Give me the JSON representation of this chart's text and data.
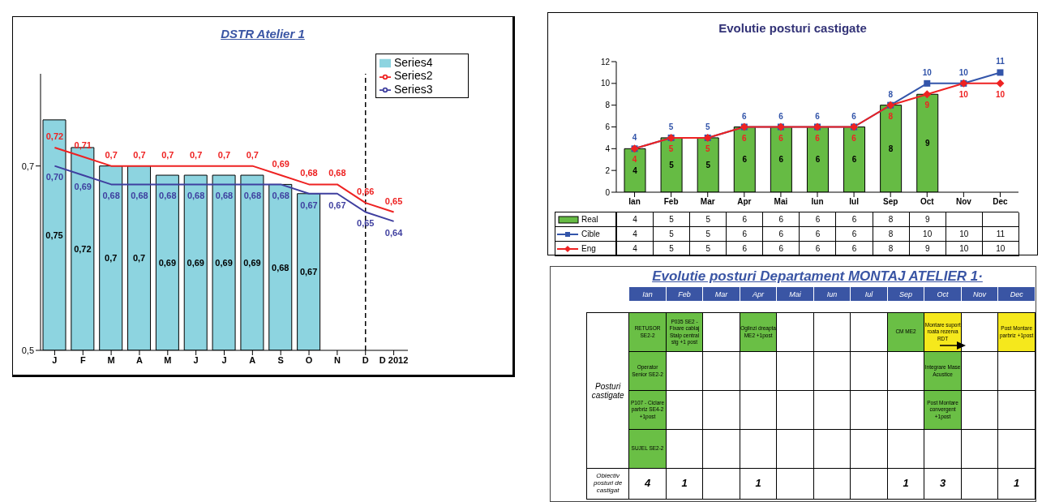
{
  "chart_data": [
    {
      "type": "bar",
      "title": "DSTR Atelier 1",
      "categories": [
        "J",
        "F",
        "M",
        "A",
        "M",
        "J",
        "J",
        "A",
        "S",
        "O",
        "N",
        "D",
        "D 2012"
      ],
      "series": [
        {
          "name": "Series4",
          "type": "bar",
          "color": "#8dd4e0",
          "values": [
            0.75,
            0.72,
            0.7,
            0.7,
            0.69,
            0.69,
            0.69,
            0.69,
            0.68,
            0.67,
            null,
            null,
            null
          ],
          "value_labels": [
            "0,75",
            "0,72",
            "0,7",
            "0,7",
            "0,69",
            "0,69",
            "0,69",
            "0,69",
            "0,68",
            "0,67",
            null,
            null,
            null
          ]
        },
        {
          "name": "Series2",
          "type": "line",
          "color": "#ee2222",
          "values": [
            0.72,
            0.71,
            0.7,
            0.7,
            0.7,
            0.7,
            0.7,
            0.7,
            0.69,
            0.68,
            0.68,
            0.66,
            0.65
          ],
          "value_labels": [
            "0,72",
            "0,71",
            "0,7",
            "0,7",
            "0,7",
            "0,7",
            "0,7",
            "0,7",
            "0,69",
            "0,68",
            "0,68",
            "0,66",
            "0,65"
          ]
        },
        {
          "name": "Series3",
          "type": "line",
          "color": "#3f3f9f",
          "values": [
            0.7,
            0.69,
            0.68,
            0.68,
            0.68,
            0.68,
            0.68,
            0.68,
            0.68,
            0.67,
            0.67,
            0.65,
            0.64
          ],
          "value_labels": [
            "0,70",
            "0,69",
            "0,68",
            "0,68",
            "0,68",
            "0,68",
            "0,68",
            "0,68",
            "0,68",
            "0,67",
            "0,67",
            "0,65",
            "0,64"
          ]
        }
      ],
      "ylim": [
        0.5,
        0.8
      ],
      "yticks": [
        {
          "value": 0.5,
          "label": "0,5"
        },
        {
          "value": 0.7,
          "label": "0,7"
        }
      ],
      "ref_lines": [
        {
          "axis": "x",
          "value": "D",
          "color": "#000000",
          "line_style": "dashed"
        }
      ],
      "legend": "top right",
      "grid": false,
      "marker": "none"
    },
    {
      "type": "bar",
      "title": "Evolutie posturi castigate",
      "categories": [
        "Ian",
        "Feb",
        "Mar",
        "Apr",
        "Mai",
        "Iun",
        "Iul",
        "Sep",
        "Oct",
        "Nov",
        "Dec"
      ],
      "series": [
        {
          "name": "Real",
          "type": "bar",
          "color": "#66bb44",
          "values": [
            4,
            5,
            5,
            6,
            6,
            6,
            6,
            8,
            9,
            null,
            null
          ],
          "value_labels": [
            "4",
            "5",
            "5",
            "6",
            "6",
            "6",
            "6",
            "8",
            "9",
            null,
            null
          ]
        },
        {
          "name": "Cible",
          "type": "line",
          "color": "#3355aa",
          "marker": "square",
          "values": [
            4,
            5,
            5,
            6,
            6,
            6,
            6,
            8,
            10,
            10,
            11
          ],
          "value_labels": [
            "4",
            "5",
            "5",
            "6",
            "6",
            "6",
            "6",
            "8",
            "10",
            "10",
            "11"
          ]
        },
        {
          "name": "Eng",
          "type": "line",
          "color": "#ee2222",
          "marker": "diamond",
          "values": [
            4,
            5,
            5,
            6,
            6,
            6,
            6,
            8,
            9,
            10,
            10
          ],
          "value_labels": [
            "4",
            "5",
            "5",
            "6",
            "6",
            "6",
            "6",
            "8",
            "9",
            "10",
            "10"
          ]
        }
      ],
      "ylim": [
        0,
        12
      ],
      "yticks": [
        0,
        2,
        4,
        6,
        8,
        10,
        12
      ],
      "legend": "bottom",
      "grid": false
    },
    {
      "type": "other",
      "cell_labels": [
        [
          "4",
          "5",
          "5",
          "6",
          "6",
          "6",
          "6",
          "8",
          "9",
          null,
          null
        ],
        [
          "4",
          "5",
          "5",
          "6",
          "6",
          "6",
          "6",
          "8",
          "10",
          "10",
          "11"
        ],
        [
          "4",
          "5",
          "5",
          "6",
          "6",
          "6",
          "6",
          "8",
          "9",
          "10",
          "10"
        ]
      ]
    },
    {
      "type": "other",
      "title": "Evolutie posturi Departament MONTAJ ATELIER 1·",
      "categories": [
        "Ian",
        "Feb",
        "Mar",
        "Apr",
        "Mai",
        "Iun",
        "Iul",
        "Sep",
        "Oct",
        "Nov",
        "Dec"
      ],
      "y_categories": [
        "Posturi castigate",
        null,
        null,
        null,
        "Obiectiv posturi de castigat"
      ],
      "cell_labels": [
        [
          "RETUSOR SE2-2",
          "P035 SE2 - Fixare cablaj Stalp central stg +1 post",
          null,
          "Oglinzi dreapta ME2 +1post",
          null,
          null,
          null,
          "CM ME2",
          "Montare suport roata rezerva RDT",
          null,
          "Post Montare parbriz +1post"
        ],
        [
          "Operator Senior SE2-2",
          null,
          null,
          null,
          null,
          null,
          null,
          null,
          "Integrare Mase Acustice",
          null,
          null
        ],
        [
          "P107 - Ciclare parbriz SE4-2 +1post",
          null,
          null,
          null,
          null,
          null,
          null,
          null,
          "Post Montare convergent +1post",
          null,
          null
        ],
        [
          "SUJEL SE2-2",
          null,
          null,
          null,
          null,
          null,
          null,
          null,
          null,
          null,
          null
        ],
        [
          "4",
          "1",
          null,
          "1",
          null,
          null,
          null,
          "1",
          "3",
          null,
          "1"
        ]
      ],
      "colors": [
        [
          "#6abf45",
          "#6abf45",
          null,
          "#6abf45",
          null,
          null,
          null,
          "#6abf45",
          "#f5e81c",
          null,
          "#f5e81c"
        ],
        [
          "#6abf45",
          null,
          null,
          null,
          null,
          null,
          null,
          null,
          "#6abf45",
          null,
          null
        ],
        [
          "#6abf45",
          null,
          null,
          null,
          null,
          null,
          null,
          null,
          "#6abf45",
          null,
          null
        ],
        [
          "#6abf45",
          null,
          null,
          null,
          null,
          null,
          null,
          null,
          null,
          null,
          null
        ],
        [
          null,
          null,
          null,
          null,
          null,
          null,
          null,
          null,
          null,
          null,
          null
        ]
      ]
    }
  ]
}
